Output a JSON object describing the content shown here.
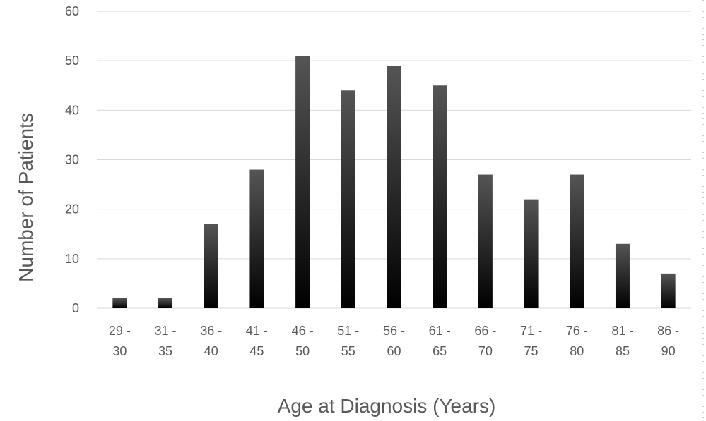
{
  "chart_data": {
    "type": "bar",
    "categories": [
      [
        "29 -",
        "30"
      ],
      [
        "31 -",
        "35"
      ],
      [
        "36 -",
        "40"
      ],
      [
        "41 -",
        "45"
      ],
      [
        "46 -",
        "50"
      ],
      [
        "51 -",
        "55"
      ],
      [
        "56 -",
        "60"
      ],
      [
        "61 -",
        "65"
      ],
      [
        "66 -",
        "70"
      ],
      [
        "71 -",
        "75"
      ],
      [
        "76 -",
        "80"
      ],
      [
        "81 -",
        "85"
      ],
      [
        "86 -",
        "90"
      ]
    ],
    "values": [
      2,
      2,
      17,
      28,
      51,
      44,
      49,
      45,
      27,
      22,
      27,
      13,
      7
    ],
    "xlabel": "Age at Diagnosis (Years)",
    "ylabel": "Number of Patients",
    "ylim": [
      0,
      60
    ],
    "yticks": [
      0,
      10,
      20,
      30,
      40,
      50,
      60
    ],
    "grid": true,
    "legend": "none",
    "colors": {
      "bar_top": "#555555",
      "bar_bottom": "#000000",
      "grid": "#d9d9d9",
      "text": "#595959"
    }
  }
}
